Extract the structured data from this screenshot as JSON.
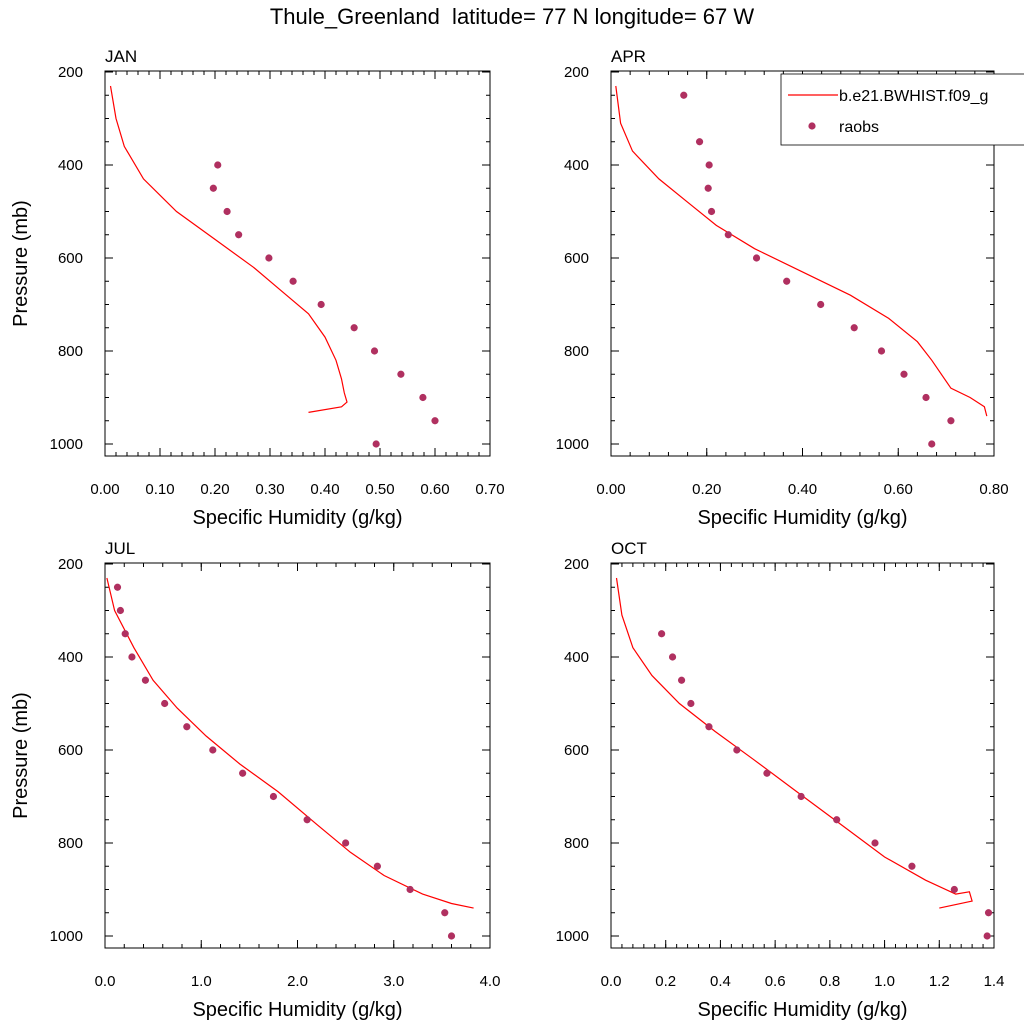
{
  "figure_title": "Thule_Greenland  latitude= 77 N longitude= 67 W",
  "legend": {
    "model_label": "b.e21.BWHIST.f09_g",
    "obs_label": "raobs",
    "model_color": "#ff0000",
    "obs_color": "#b03060"
  },
  "chart_data": [
    {
      "type": "scatter",
      "panel": "JAN",
      "title": "JAN",
      "xlabel": "Specific Humidity (g/kg)",
      "ylabel": "Pressure (mb)",
      "xlim": [
        0,
        0.7
      ],
      "xticks": [
        0,
        0.1,
        0.2,
        0.3,
        0.4,
        0.5,
        0.6,
        0.7
      ],
      "xtick_labels": [
        "0.00",
        "0.10",
        "0.20",
        "0.30",
        "0.40",
        "0.50",
        "0.60",
        "0.70"
      ],
      "ylim": [
        200,
        1025
      ],
      "yticks": [
        200,
        400,
        600,
        800,
        1000
      ],
      "ytick_labels": [
        "200",
        "400",
        "600",
        "800",
        "1000"
      ],
      "model": {
        "name": "b.e21.BWHIST.f09_g",
        "x": [
          0.01,
          0.02,
          0.035,
          0.07,
          0.13,
          0.2,
          0.27,
          0.32,
          0.37,
          0.4,
          0.42,
          0.43,
          0.435,
          0.44,
          0.43,
          0.37
        ],
        "y": [
          230,
          300,
          360,
          430,
          500,
          560,
          620,
          670,
          720,
          770,
          820,
          860,
          890,
          910,
          920,
          932
        ]
      },
      "obs": {
        "name": "raobs",
        "x": [
          0.205,
          0.197,
          0.222,
          0.243,
          0.298,
          0.342,
          0.393,
          0.453,
          0.49,
          0.538,
          0.578,
          0.6,
          0.493
        ],
        "y": [
          400,
          450,
          500,
          550,
          600,
          650,
          700,
          750,
          800,
          850,
          900,
          950,
          1000
        ]
      }
    },
    {
      "type": "scatter",
      "panel": "APR",
      "title": "APR",
      "xlabel": "Specific Humidity (g/kg)",
      "ylabel": "",
      "xlim": [
        0,
        0.8
      ],
      "xticks": [
        0,
        0.2,
        0.4,
        0.6,
        0.8
      ],
      "xtick_labels": [
        "0.00",
        "0.20",
        "0.40",
        "0.60",
        "0.80"
      ],
      "ylim": [
        200,
        1025
      ],
      "yticks": [
        200,
        400,
        600,
        800,
        1000
      ],
      "ytick_labels": [
        "200",
        "400",
        "600",
        "800",
        "1000"
      ],
      "show_legend": true,
      "model": {
        "name": "b.e21.BWHIST.f09_g",
        "x": [
          0.01,
          0.02,
          0.045,
          0.1,
          0.16,
          0.22,
          0.3,
          0.4,
          0.5,
          0.58,
          0.64,
          0.67,
          0.71,
          0.75,
          0.78,
          0.785
        ],
        "y": [
          230,
          310,
          370,
          430,
          480,
          530,
          580,
          630,
          680,
          730,
          780,
          820,
          880,
          900,
          920,
          940
        ]
      },
      "obs": {
        "name": "raobs",
        "x": [
          0.152,
          0.185,
          0.205,
          0.203,
          0.21,
          0.245,
          0.304,
          0.367,
          0.438,
          0.508,
          0.565,
          0.612,
          0.658,
          0.71,
          0.67
        ],
        "y": [
          250,
          350,
          400,
          450,
          500,
          550,
          600,
          650,
          700,
          750,
          800,
          850,
          900,
          950,
          1000
        ]
      }
    },
    {
      "type": "scatter",
      "panel": "JUL",
      "title": "JUL",
      "xlabel": "Specific Humidity (g/kg)",
      "ylabel": "Pressure (mb)",
      "xlim": [
        0,
        4.0
      ],
      "xticks": [
        0,
        1,
        2,
        3,
        4
      ],
      "xtick_labels": [
        "0.0",
        "1.0",
        "2.0",
        "3.0",
        "4.0"
      ],
      "ylim": [
        200,
        1025
      ],
      "yticks": [
        200,
        400,
        600,
        800,
        1000
      ],
      "ytick_labels": [
        "200",
        "400",
        "600",
        "800",
        "1000"
      ],
      "model": {
        "name": "b.e21.BWHIST.f09_g",
        "x": [
          0.02,
          0.1,
          0.3,
          0.5,
          0.75,
          1.05,
          1.4,
          1.8,
          2.2,
          2.55,
          2.9,
          3.3,
          3.6,
          3.83
        ],
        "y": [
          230,
          300,
          380,
          450,
          510,
          570,
          630,
          690,
          760,
          820,
          870,
          910,
          930,
          940
        ]
      },
      "obs": {
        "name": "raobs",
        "x": [
          0.13,
          0.16,
          0.21,
          0.28,
          0.42,
          0.62,
          0.85,
          1.12,
          1.43,
          1.75,
          2.1,
          2.5,
          2.83,
          3.17,
          3.53,
          3.6
        ],
        "y": [
          250,
          300,
          350,
          400,
          450,
          500,
          550,
          600,
          650,
          700,
          750,
          800,
          850,
          900,
          950,
          1000
        ]
      }
    },
    {
      "type": "scatter",
      "panel": "OCT",
      "title": "OCT",
      "xlabel": "Specific Humidity (g/kg)",
      "ylabel": "",
      "xlim": [
        0,
        1.4
      ],
      "xticks": [
        0,
        0.2,
        0.4,
        0.6,
        0.8,
        1.0,
        1.2,
        1.4
      ],
      "xtick_labels": [
        "0.0",
        "0.2",
        "0.4",
        "0.6",
        "0.8",
        "1.0",
        "1.2",
        "1.4"
      ],
      "ylim": [
        200,
        1025
      ],
      "yticks": [
        200,
        400,
        600,
        800,
        1000
      ],
      "ytick_labels": [
        "200",
        "400",
        "600",
        "800",
        "1000"
      ],
      "model": {
        "name": "b.e21.BWHIST.f09_g",
        "x": [
          0.02,
          0.04,
          0.08,
          0.15,
          0.25,
          0.38,
          0.52,
          0.68,
          0.84,
          1.0,
          1.15,
          1.26,
          1.31,
          1.32,
          1.2
        ],
        "y": [
          230,
          310,
          380,
          440,
          500,
          560,
          620,
          690,
          760,
          830,
          880,
          910,
          905,
          925,
          940
        ]
      },
      "obs": {
        "name": "raobs",
        "x": [
          0.185,
          0.225,
          0.258,
          0.292,
          0.358,
          0.46,
          0.57,
          0.695,
          0.825,
          0.965,
          1.1,
          1.255,
          1.38,
          1.375
        ],
        "y": [
          350,
          400,
          450,
          500,
          550,
          600,
          650,
          700,
          750,
          800,
          850,
          900,
          950,
          1000
        ]
      }
    }
  ]
}
